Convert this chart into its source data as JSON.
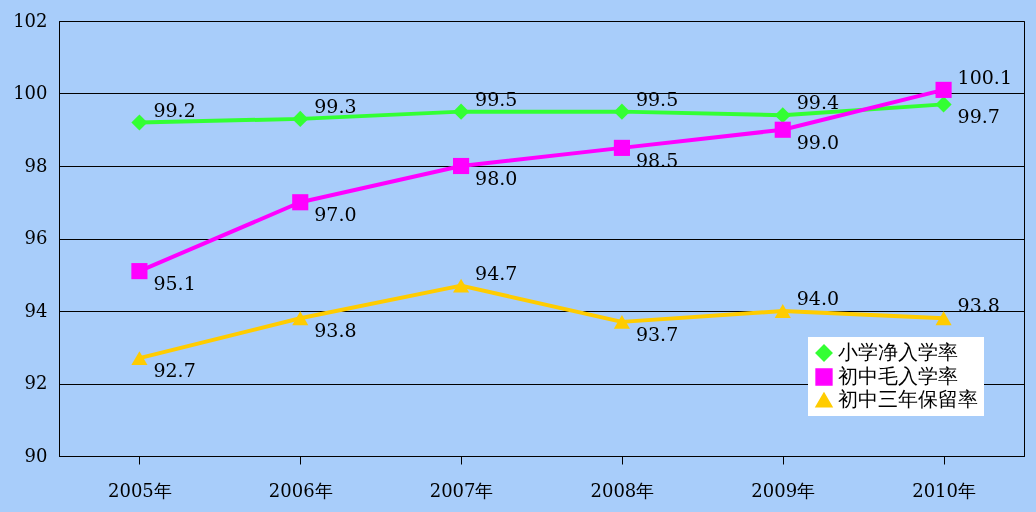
{
  "chart_data": {
    "type": "line",
    "categories": [
      "2005年",
      "2006年",
      "2007年",
      "2008年",
      "2009年",
      "2010年"
    ],
    "series": [
      {
        "name": "小学净入学率",
        "color": "#33ff33",
        "marker": "diamond",
        "values": [
          99.2,
          99.3,
          99.5,
          99.5,
          99.4,
          99.7
        ],
        "value_labels": [
          "99.2",
          "99.3",
          "99.5",
          "99.5",
          "99.4",
          "99.7"
        ]
      },
      {
        "name": "初中毛入学率",
        "color": "#ff00ff",
        "marker": "square",
        "values": [
          95.1,
          97.0,
          98.0,
          98.5,
          99.0,
          100.1
        ],
        "value_labels": [
          "95.1",
          "97.0",
          "98.0",
          "98.5",
          "99.0",
          "100.1"
        ]
      },
      {
        "name": "初中三年保留率",
        "color": "#ffcc00",
        "marker": "triangle",
        "values": [
          92.7,
          93.8,
          94.7,
          93.7,
          94.0,
          93.8
        ],
        "value_labels": [
          "92.7",
          "93.8",
          "94.7",
          "93.7",
          "94.0",
          "93.8"
        ]
      }
    ],
    "ylim": [
      90,
      102
    ],
    "yticks": [
      90,
      92,
      94,
      96,
      98,
      100,
      102
    ],
    "grid": "y",
    "legend": "bottom right",
    "data_labels": true
  }
}
